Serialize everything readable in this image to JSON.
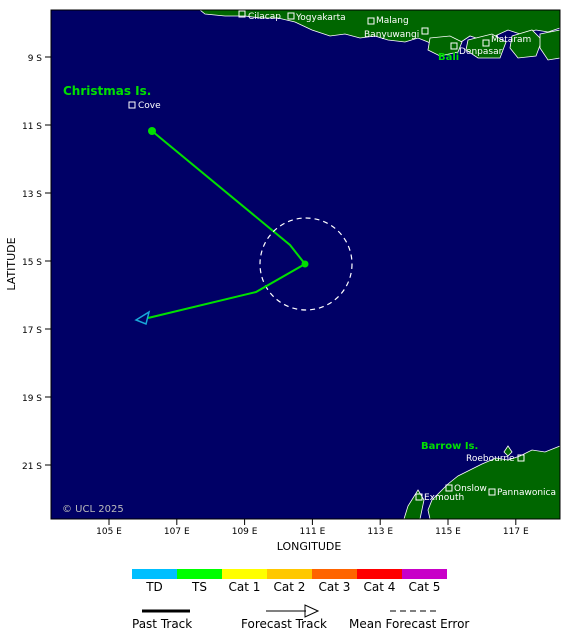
{
  "map": {
    "ocean_color": "#000066",
    "land_color": "#006600",
    "track_color": "#00e000",
    "forecast_color": "#19a7d9",
    "lat_ticks": [
      "9 S",
      "11 S",
      "13 S",
      "15 S",
      "17 S",
      "19 S",
      "21 S"
    ],
    "lon_ticks": [
      "105 E",
      "107 E",
      "109 E",
      "111 E",
      "113 E",
      "115 E",
      "117 E"
    ],
    "ylabel": "LATITUDE",
    "xlabel": "LONGITUDE",
    "copyright": "© UCL 2025",
    "regions": {
      "christmas": "Christmas Is.",
      "bali": "Bali",
      "barrow": "Barrow Is."
    },
    "places": {
      "cilacap": "Cilacap",
      "yogyakarta": "Yogyakarta",
      "malang": "Malang",
      "banyuwangi": "Banyuwangi",
      "mataram": "Mataram",
      "denpasar": "Denpasar",
      "cove": "Cove",
      "roebourne": "Roebourne",
      "onslow": "Onslow",
      "pannawonica": "Pannawonica",
      "exmouth": "Exmouth"
    }
  },
  "legend": {
    "categories": [
      {
        "label": "TD",
        "color": "#00bfff"
      },
      {
        "label": "TS",
        "color": "#00ff00"
      },
      {
        "label": "Cat 1",
        "color": "#ffff00"
      },
      {
        "label": "Cat 2",
        "color": "#ffc800"
      },
      {
        "label": "Cat 3",
        "color": "#ff6400"
      },
      {
        "label": "Cat 4",
        "color": "#ff0000"
      },
      {
        "label": "Cat 5",
        "color": "#c800c8"
      }
    ],
    "past_track": "Past Track",
    "forecast_track": "Forecast Track",
    "error": "Mean Forecast Error"
  }
}
